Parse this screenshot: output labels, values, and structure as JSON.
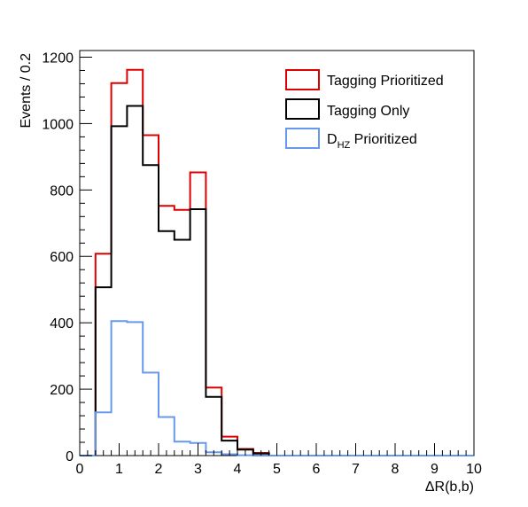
{
  "chart_data": {
    "type": "histogram",
    "xlabel": "ΔR(b,b)",
    "ylabel": "Events / 0.2",
    "xlim": [
      0,
      10
    ],
    "ylim": [
      0,
      1220
    ],
    "x_ticks": [
      0,
      1,
      2,
      3,
      4,
      5,
      6,
      7,
      8,
      9,
      10
    ],
    "y_ticks": [
      0,
      200,
      400,
      600,
      800,
      1000,
      1200
    ],
    "bin_edges": [
      0,
      0.4,
      0.8,
      1.2,
      1.6,
      2.0,
      2.4,
      2.8,
      3.2,
      3.6,
      4.0,
      4.4,
      4.8,
      5.2
    ],
    "legend_position": "top-right",
    "grid": false,
    "series": [
      {
        "name": "Tagging Prioritized",
        "legend_main": "Tagging Prioritized",
        "legend_sub": "",
        "legend_rest": "",
        "color": "#dd0000",
        "values": [
          0,
          608,
          1122,
          1162,
          965,
          752,
          740,
          853,
          205,
          57,
          20,
          8,
          0
        ]
      },
      {
        "name": "Tagging Only",
        "legend_main": "Tagging Only",
        "legend_sub": "",
        "legend_rest": "",
        "color": "#000000",
        "values": [
          0,
          507,
          992,
          1053,
          875,
          676,
          650,
          742,
          177,
          45,
          18,
          6,
          0
        ]
      },
      {
        "name": "D_HZ Prioritized",
        "legend_main": "D",
        "legend_sub": "HZ",
        "legend_rest": " Prioritized",
        "color": "#6699ee",
        "values": [
          0,
          130,
          405,
          402,
          250,
          116,
          42,
          38,
          10,
          4,
          1,
          0,
          0
        ]
      }
    ]
  }
}
